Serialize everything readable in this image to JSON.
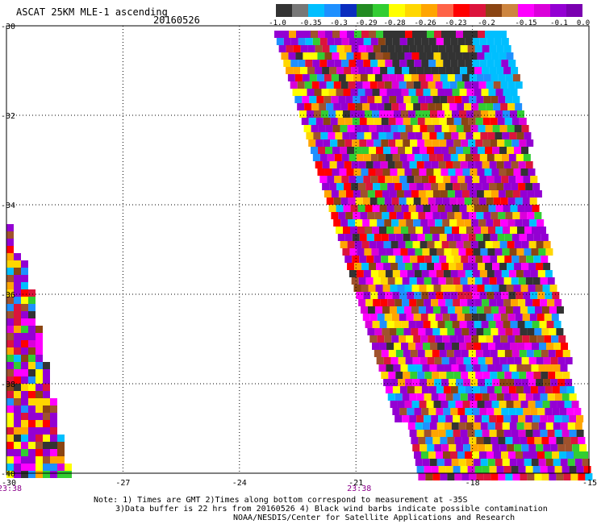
{
  "header": {
    "title": "ASCAT 25KM MLE-1 ascending",
    "date": "20160526"
  },
  "colorbar": {
    "colors": [
      "#333333",
      "#777777",
      "#00bfff",
      "#1e90ff",
      "#0a2dbf",
      "#228b22",
      "#32cd32",
      "#ffff00",
      "#ffd700",
      "#ffa500",
      "#ff6347",
      "#ff0000",
      "#dc143c",
      "#8b4513",
      "#cd853f",
      "#ff00ff",
      "#da00da",
      "#9400d3",
      "#7a00b0"
    ],
    "labels": [
      "-1.0",
      "-0.35",
      "-0.3",
      "-0.29",
      "-0.28",
      "-0.26",
      "-0.23",
      "-0.2",
      "-0.15",
      "-0.1",
      "0.0"
    ]
  },
  "map": {
    "lon_ticks": [
      "-30",
      "-27",
      "-24",
      "-21",
      "-18",
      "-15"
    ],
    "lat_ticks": [
      "-30",
      "-32",
      "-34",
      "-36",
      "-38",
      "-40"
    ],
    "pass_times": [
      "23:38",
      "23:38"
    ],
    "swath_palette": [
      "#9400d3",
      "#9400d3",
      "#9400d3",
      "#9400d3",
      "#da00da",
      "#ff00ff",
      "#ff0000",
      "#dc143c",
      "#ffa500",
      "#ffd700",
      "#ffff00",
      "#a0522d",
      "#8b4513",
      "#32cd32",
      "#1e90ff",
      "#333333",
      "#00bfff"
    ]
  },
  "footer": {
    "line1": "Note: 1) Times are GMT 2)Times along bottom correspond to measurement at -35S",
    "line2": "3)Data buffer is 22 hrs from 20160526 4) Black wind barbs indicate possible contamination",
    "line3": "NOAA/NESDIS/Center for Satellite Applications and Research"
  }
}
